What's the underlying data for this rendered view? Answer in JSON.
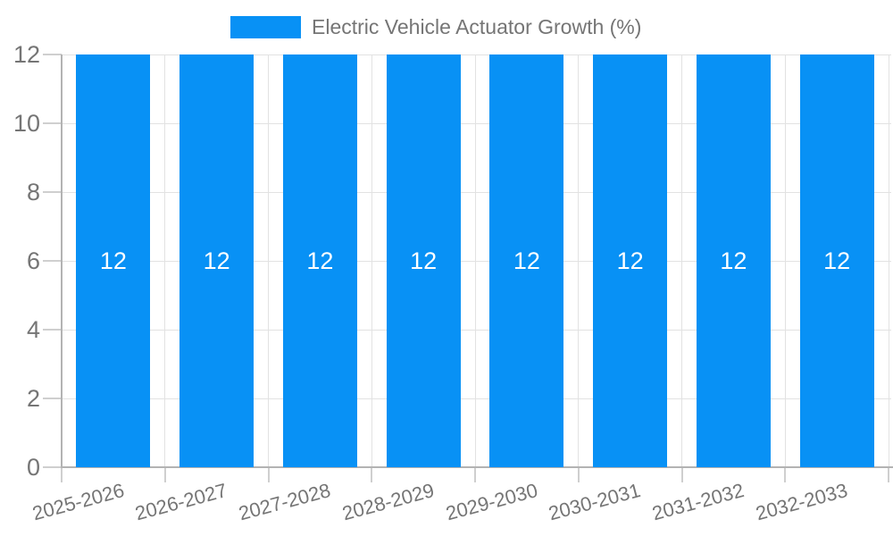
{
  "chart_data": {
    "type": "bar",
    "title": "",
    "categories": [
      "2025-2026",
      "2026-2027",
      "2027-2028",
      "2028-2029",
      "2029-2030",
      "2030-2031",
      "2031-2032",
      "2032-2033"
    ],
    "series": [
      {
        "name": "Electric Vehicle Actuator Growth (%)",
        "values": [
          12,
          12,
          12,
          12,
          12,
          12,
          12,
          12
        ]
      }
    ],
    "bar_value_labels": [
      "12",
      "12",
      "12",
      "12",
      "12",
      "12",
      "12",
      "12"
    ],
    "xlabel": "",
    "ylabel": "",
    "ylim": [
      0,
      12
    ],
    "yticks": [
      0,
      2,
      4,
      6,
      8,
      10,
      12
    ],
    "grid": true,
    "legend_position": "top",
    "x_label_rotation_deg": -15,
    "colors": {
      "bar": "#0891F5",
      "grid": "#e2e2e2",
      "axis": "#b3b3b3",
      "tick": "#cfcfcf",
      "label": "#757575",
      "bar_label": "#ffffff",
      "background": "#ffffff"
    }
  }
}
